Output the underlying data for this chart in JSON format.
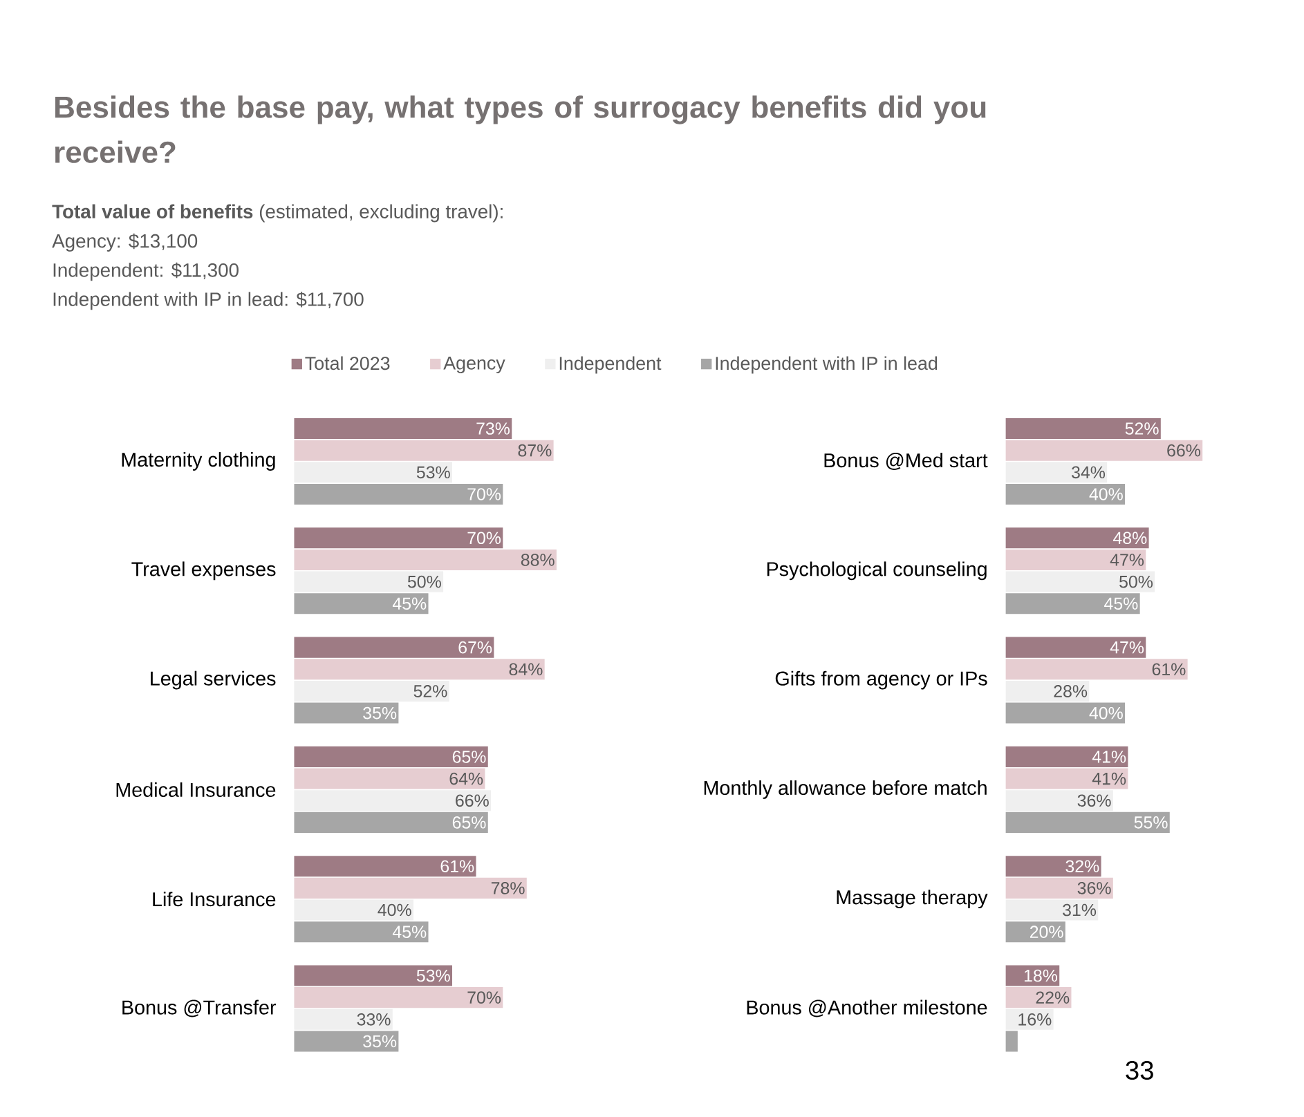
{
  "chart_data": [
    {
      "type": "bar",
      "orientation": "horizontal",
      "title": "Besides the base pay, what types of surrogacy benefits did you receive?",
      "subtitle": "**Total value of benefits** (estimated, excluding travel):",
      "annotations": [
        "Agency: $13,100",
        "Independent: $11,300",
        "Independent with IP in lead: $11,700",
        "33"
      ],
      "legend": "top",
      "categories": [
        "Maternity clothing",
        "Travel expenses",
        "Legal services",
        "Medical Insurance",
        "Life Insurance",
        "Bonus @Transfer"
      ],
      "series": [
        {
          "name": "Total 2023",
          "color": "#9e7b84",
          "values": [
            73,
            70,
            67,
            65,
            61,
            53
          ],
          "value_labels": [
            "73%",
            "70%",
            "67%",
            "65%",
            "61%",
            "53%"
          ]
        },
        {
          "name": "Agency",
          "color": "#e6cdd1",
          "values": [
            87,
            88,
            84,
            64,
            78,
            70
          ],
          "value_labels": [
            "87%",
            "88%",
            "84%",
            "64%",
            "78%",
            "70%"
          ]
        },
        {
          "name": "Independent",
          "color": "#efefef",
          "values": [
            53,
            50,
            52,
            66,
            40,
            33
          ],
          "value_labels": [
            "53%",
            "50%",
            "52%",
            "66%",
            "40%",
            "33%"
          ]
        },
        {
          "name": "Independent with IP in lead",
          "color": "#a6a6a6",
          "values": [
            70,
            45,
            35,
            65,
            45,
            35
          ],
          "value_labels": [
            "70%",
            "45%",
            "35%",
            "65%",
            "45%",
            "35%"
          ]
        }
      ]
    },
    {
      "type": "bar",
      "orientation": "horizontal",
      "categories": [
        "Bonus @Med start",
        "Psychological counseling",
        "Gifts from agency or IPs",
        "Monthly allowance before match",
        "Massage therapy",
        "Bonus @Another milestone"
      ],
      "series": [
        {
          "color": "#9e7b84",
          "values": [
            52,
            48,
            47,
            41,
            32,
            18
          ],
          "value_labels": [
            "52%",
            "48%",
            "47%",
            "41%",
            "32%",
            "18%"
          ]
        },
        {
          "color": "#e6cdd1",
          "values": [
            66,
            47,
            61,
            41,
            36,
            22
          ],
          "value_labels": [
            "66%",
            "47%",
            "61%",
            "41%",
            "36%",
            "22%"
          ]
        },
        {
          "color": "#efefef",
          "values": [
            34,
            50,
            28,
            36,
            31,
            16
          ],
          "value_labels": [
            "34%",
            "50%",
            "28%",
            "36%",
            "31%",
            "16%"
          ]
        },
        {
          "color": "#a6a6a6",
          "values": [
            40,
            45,
            40,
            55,
            20,
            4
          ],
          "value_labels": [
            "40%",
            "45%",
            "40%",
            "55%",
            "20%",
            null
          ]
        }
      ]
    }
  ]
}
